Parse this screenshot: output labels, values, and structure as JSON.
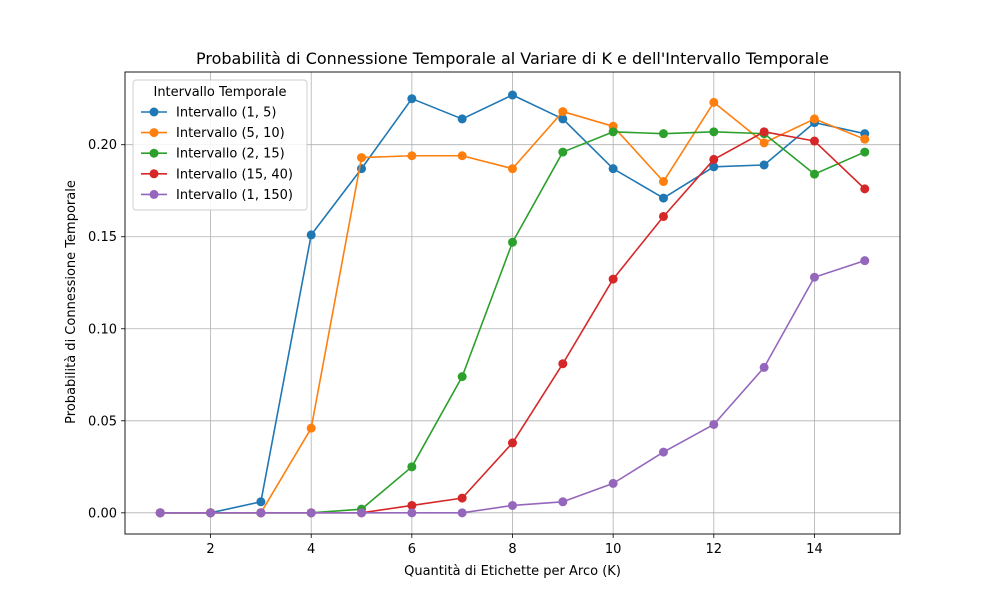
{
  "chart_data": {
    "type": "line",
    "title": "Probabilità di Connessione Temporale al Variare di K e dell'Intervallo Temporale",
    "xlabel": "Quantità di Etichette per Arco (K)",
    "ylabel": "Probabilità di Connessione Temporale",
    "xlim": [
      0.3,
      15.7
    ],
    "ylim": [
      -0.0115,
      0.2395
    ],
    "xticks": [
      2,
      4,
      6,
      8,
      10,
      12,
      14
    ],
    "xtick_labels": [
      "2",
      "4",
      "6",
      "8",
      "10",
      "12",
      "14"
    ],
    "yticks": [
      0.0,
      0.05,
      0.1,
      0.15,
      0.2
    ],
    "ytick_labels": [
      "0.00",
      "0.05",
      "0.10",
      "0.15",
      "0.20"
    ],
    "grid": true,
    "legend": {
      "title": "Intervallo Temporale",
      "placement": "upper-left"
    },
    "x": [
      1,
      2,
      3,
      4,
      5,
      6,
      7,
      8,
      9,
      10,
      11,
      12,
      13,
      14,
      15
    ],
    "series": [
      {
        "name": "Intervallo (1, 5)",
        "color": "#1f77b4",
        "values": [
          0.0,
          0.0,
          0.006,
          0.151,
          0.187,
          0.225,
          0.214,
          0.227,
          0.214,
          0.187,
          0.171,
          0.188,
          0.189,
          0.212,
          0.206
        ]
      },
      {
        "name": "Intervallo (5, 10)",
        "color": "#ff7f0e",
        "values": [
          0.0,
          0.0,
          0.0,
          0.046,
          0.193,
          0.194,
          0.194,
          0.187,
          0.218,
          0.21,
          0.18,
          0.223,
          0.201,
          0.214,
          0.203
        ]
      },
      {
        "name": "Intervallo (2, 15)",
        "color": "#2ca02c",
        "values": [
          0.0,
          0.0,
          0.0,
          0.0,
          0.002,
          0.025,
          0.074,
          0.147,
          0.196,
          0.207,
          0.206,
          0.207,
          0.206,
          0.184,
          0.196
        ]
      },
      {
        "name": "Intervallo (15, 40)",
        "color": "#d62728",
        "values": [
          0.0,
          0.0,
          0.0,
          0.0,
          0.0,
          0.004,
          0.008,
          0.038,
          0.081,
          0.127,
          0.161,
          0.192,
          0.207,
          0.202,
          0.176
        ]
      },
      {
        "name": "Intervallo (1, 150)",
        "color": "#9467bd",
        "values": [
          0.0,
          0.0,
          0.0,
          0.0,
          0.0,
          0.0,
          0.0,
          0.004,
          0.006,
          0.016,
          0.033,
          0.048,
          0.079,
          0.128,
          0.137
        ]
      }
    ]
  }
}
